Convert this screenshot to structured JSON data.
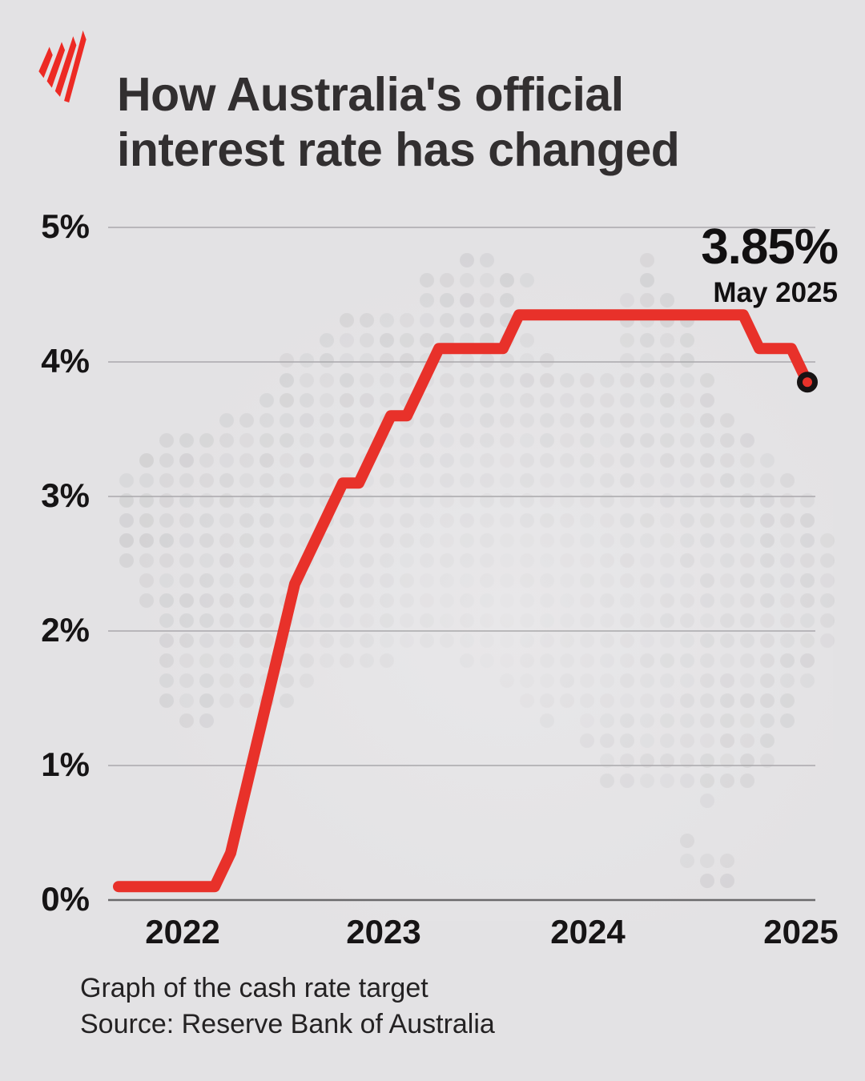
{
  "header": {
    "logo": "sbs-logo",
    "title": "How Australia's official interest rate has changed"
  },
  "annotation": {
    "value": "3.85%",
    "date": "May 2025"
  },
  "footer": {
    "caption": "Graph of the cash rate target",
    "source": "Source: Reserve Bank of Australia"
  },
  "colors": {
    "background": "#e3e2e4",
    "line": "#e8312a",
    "marker_fill": "#e8312a",
    "marker_ring": "#171314",
    "logo_red": "#ed2a24",
    "grid": "#a9a8ab",
    "axis": "#6a696b",
    "dot": "#cfced0",
    "title_text": "#322f30",
    "tick_text": "#161415"
  },
  "chart_data": {
    "type": "line",
    "title": "How Australia's official interest rate has changed",
    "caption": "Graph of the cash rate target",
    "source": "Source: Reserve Bank of Australia",
    "unit": "%",
    "ylim": [
      0,
      5
    ],
    "grid": true,
    "yticks": [
      {
        "label": "5%",
        "value": 5
      },
      {
        "label": "4%",
        "value": 4
      },
      {
        "label": "3%",
        "value": 3
      },
      {
        "label": "2%",
        "value": 2
      },
      {
        "label": "1%",
        "value": 1
      },
      {
        "label": "0%",
        "value": 0
      }
    ],
    "xticks": [
      {
        "label": "2022"
      },
      {
        "label": "2023"
      },
      {
        "label": "2024"
      },
      {
        "label": "2025"
      }
    ],
    "series": [
      {
        "name": "Cash rate target",
        "color": "#e8312a",
        "points": [
          [
            "2021-10",
            0.1
          ],
          [
            "2022-04",
            0.1
          ],
          [
            "2022-05",
            0.35
          ],
          [
            "2022-06",
            0.85
          ],
          [
            "2022-07",
            1.35
          ],
          [
            "2022-08",
            1.85
          ],
          [
            "2022-09",
            2.35
          ],
          [
            "2022-10",
            2.6
          ],
          [
            "2022-11",
            2.85
          ],
          [
            "2022-12",
            3.1
          ],
          [
            "2023-01",
            3.1
          ],
          [
            "2023-02",
            3.35
          ],
          [
            "2023-03",
            3.6
          ],
          [
            "2023-04",
            3.6
          ],
          [
            "2023-05",
            3.85
          ],
          [
            "2023-06",
            4.1
          ],
          [
            "2023-10",
            4.1
          ],
          [
            "2023-11",
            4.35
          ],
          [
            "2025-01",
            4.35
          ],
          [
            "2025-02",
            4.1
          ],
          [
            "2025-04",
            4.1
          ],
          [
            "2025-05",
            3.85
          ]
        ]
      }
    ],
    "end_point": {
      "date": "May 2025",
      "value": 3.85,
      "label": "3.85%"
    }
  }
}
